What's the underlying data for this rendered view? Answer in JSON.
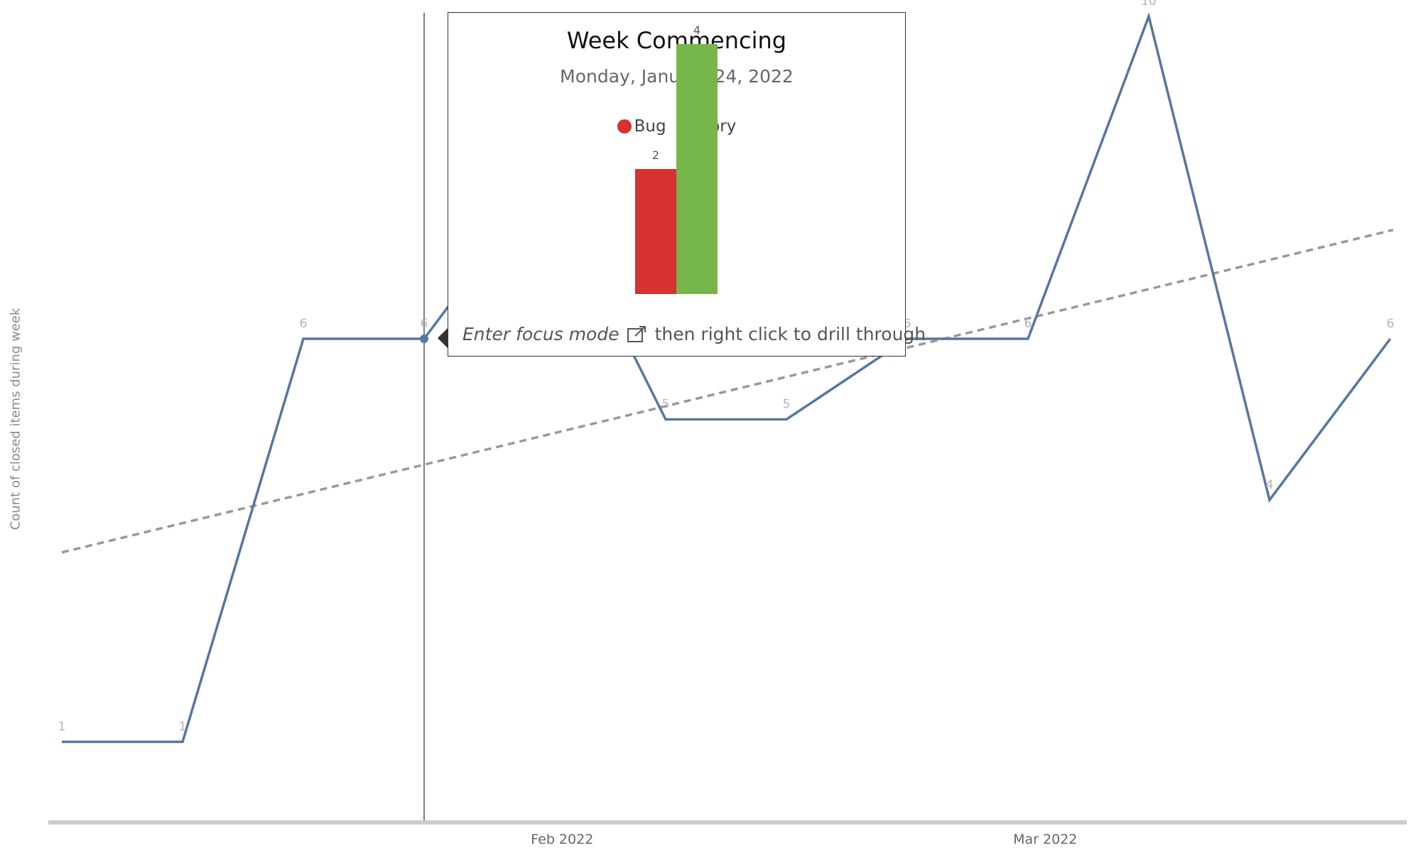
{
  "chart_data": {
    "type": "line",
    "ylabel": "Count of closed items during week",
    "x_ticks": [
      "Feb 2022",
      "Mar 2022"
    ],
    "x": [
      "2022-01-03",
      "2022-01-10",
      "2022-01-17",
      "2022-01-24",
      "2022-01-31",
      "2022-02-07",
      "2022-02-14",
      "2022-02-21",
      "2022-02-28",
      "2022-03-07",
      "2022-03-14",
      "2022-03-21"
    ],
    "series": [
      {
        "values": [
          1,
          1,
          6,
          6,
          8,
          5,
          5,
          6,
          6,
          10,
          4,
          6
        ],
        "labels": [
          "1",
          "1",
          "6",
          "6",
          "",
          "5",
          "5",
          "6",
          "6",
          "10",
          "4",
          "6"
        ],
        "color": "#5577a0"
      },
      {
        "type": "trend",
        "style": "dashed",
        "color": "#999999",
        "start": 3.35,
        "end": 7.35
      }
    ],
    "ylim": [
      0,
      10.3
    ],
    "grid": false,
    "hover_index": 3
  },
  "tooltip": {
    "title": "Week Commencing",
    "date": "Monday, January 24, 2022",
    "legend": [
      {
        "name": "Bug",
        "color": "#d63230"
      },
      {
        "name": "Story",
        "color": "#76b64a"
      }
    ],
    "bars": [
      {
        "category": "Bug",
        "value": 2,
        "label": "2",
        "color": "#d63230"
      },
      {
        "category": "Story",
        "value": 4,
        "label": "4",
        "color": "#76b64a"
      }
    ],
    "hint_focus": "Enter focus mode",
    "hint_rest": "then right click to drill through",
    "focus_icon": "focus-mode-icon"
  }
}
